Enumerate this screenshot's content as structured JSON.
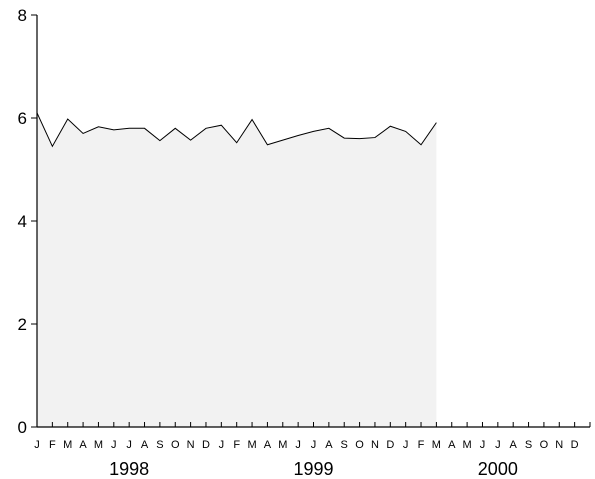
{
  "chart_data": {
    "type": "area",
    "title": "",
    "xlabel": "",
    "ylabel": "",
    "ylim": [
      0,
      8
    ],
    "y_ticks": [
      0,
      2,
      4,
      6,
      8
    ],
    "month_labels": [
      "J",
      "F",
      "M",
      "A",
      "M",
      "J",
      "J",
      "A",
      "S",
      "O",
      "N",
      "D",
      "J",
      "F",
      "M",
      "A",
      "M",
      "J",
      "J",
      "A",
      "S",
      "O",
      "N",
      "D",
      "J",
      "F",
      "M",
      "A",
      "M",
      "J",
      "J",
      "A",
      "S",
      "O",
      "N",
      "D"
    ],
    "year_labels": [
      "1998",
      "1999",
      "2000"
    ],
    "x_range": [
      "1998-01",
      "2000-12"
    ],
    "grid": false,
    "series": [
      {
        "x": [
          "1998-01",
          "1998-02",
          "1998-03",
          "1998-04",
          "1998-05",
          "1998-06",
          "1998-07",
          "1998-08",
          "1998-09",
          "1998-10",
          "1998-11",
          "1998-12",
          "1999-01",
          "1999-02",
          "1999-03",
          "1999-04",
          "1999-05",
          "1999-06",
          "1999-07",
          "1999-08",
          "1999-09",
          "1999-10",
          "1999-11",
          "1999-12",
          "2000-01",
          "2000-02",
          "2000-03"
        ],
        "values": [
          6.1,
          5.45,
          5.98,
          5.7,
          5.83,
          5.77,
          5.8,
          5.8,
          5.56,
          5.8,
          5.57,
          5.8,
          5.86,
          5.52,
          5.97,
          5.48,
          5.57,
          5.66,
          5.74,
          5.8,
          5.61,
          5.6,
          5.62,
          5.84,
          5.74,
          5.48,
          5.91
        ]
      }
    ],
    "colors": {
      "area_fill": "#f2f2f2",
      "line": "#000000",
      "axis": "#000000"
    }
  }
}
